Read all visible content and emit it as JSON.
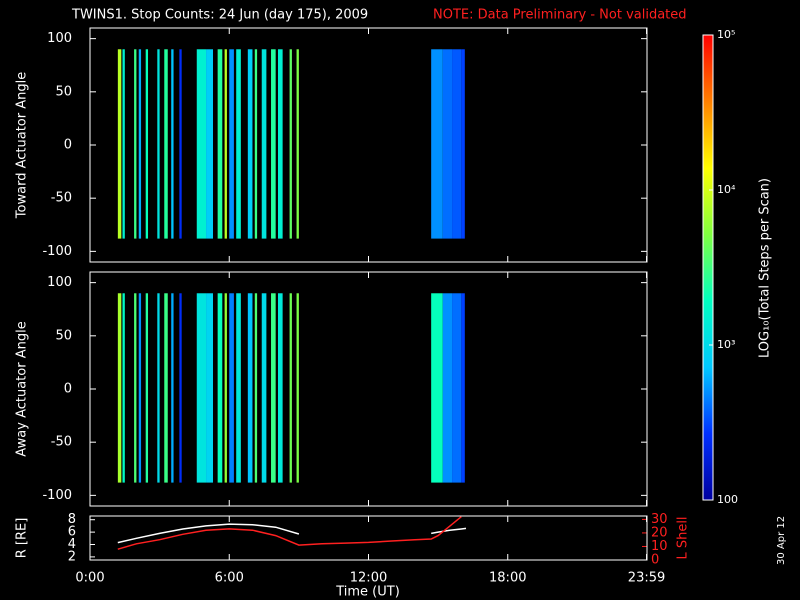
{
  "title": "TWINS1. Stop Counts: 24 Jun (day 175), 2009",
  "note": "NOTE: Data Preliminary - Not validated",
  "x_label": "Time (UT)",
  "date_stamp": "30 Apr 12",
  "time_axis": {
    "xlim": [
      0,
      24
    ],
    "xticks": [
      {
        "value": 0,
        "label": "0:00"
      },
      {
        "value": 6,
        "label": "6:00"
      },
      {
        "value": 12,
        "label": "12:00"
      },
      {
        "value": 18,
        "label": "18:00"
      },
      {
        "value": 23.98,
        "label": "23:59"
      }
    ]
  },
  "colorbar": {
    "label": "LOG₁₀(Total Steps per Scan)",
    "scale": "log",
    "lim": [
      100,
      100000
    ],
    "ticks": [
      100,
      {
        "value": 1000,
        "label": "10³"
      },
      {
        "value": 10000,
        "label": "10⁴"
      },
      {
        "value": 100000,
        "label": "10⁵"
      }
    ],
    "colors": [
      "#0000a0",
      "#0030ff",
      "#00c8ff",
      "#00ffc0",
      "#80ff40",
      "#ffff00",
      "#ff8000",
      "#ff0000"
    ]
  },
  "chart_data": [
    {
      "type": "heatmap",
      "y_label": "Toward Actuator Angle",
      "ylim": [
        -110,
        110
      ],
      "yticks": [
        -100,
        -50,
        0,
        50,
        100
      ],
      "angle_range": [
        -88,
        90
      ],
      "x_start": [
        1.2,
        1.4,
        1.9,
        2.1,
        2.4,
        2.9,
        3.2,
        3.5,
        3.85,
        4.6,
        5.0,
        5.5,
        5.8,
        6.0,
        6.3,
        6.8,
        7.1,
        7.4,
        7.8,
        8.1,
        8.6,
        8.9,
        14.7,
        15.2,
        15.6,
        16.0
      ],
      "x_end": [
        1.35,
        1.5,
        2.0,
        2.2,
        2.5,
        3.0,
        3.35,
        3.6,
        3.95,
        5.0,
        5.3,
        5.7,
        5.9,
        6.2,
        6.5,
        7.0,
        7.2,
        7.6,
        8.0,
        8.3,
        8.7,
        9.0,
        15.2,
        15.6,
        16.0,
        16.15
      ],
      "values": [
        8000,
        1500,
        3000,
        600,
        2000,
        1200,
        2500,
        700,
        250,
        1500,
        800,
        2500,
        8000,
        500,
        1500,
        800,
        3000,
        1200,
        2500,
        1500,
        4000,
        5000,
        500,
        400,
        350,
        300
      ]
    },
    {
      "type": "heatmap",
      "y_label": "Away Actuator Angle",
      "ylim": [
        -110,
        110
      ],
      "yticks": [
        -100,
        -50,
        0,
        50,
        100
      ],
      "angle_range": [
        -88,
        90
      ],
      "x_start": [
        1.2,
        1.4,
        1.9,
        2.1,
        2.4,
        2.9,
        3.2,
        3.5,
        3.85,
        4.6,
        5.0,
        5.5,
        5.8,
        6.0,
        6.3,
        6.8,
        7.1,
        7.4,
        7.8,
        8.1,
        8.6,
        8.9,
        14.7,
        15.2,
        15.6,
        16.0
      ],
      "x_end": [
        1.35,
        1.5,
        2.0,
        2.2,
        2.5,
        3.0,
        3.35,
        3.6,
        3.95,
        5.0,
        5.3,
        5.7,
        5.9,
        6.2,
        6.5,
        7.0,
        7.2,
        7.6,
        8.0,
        8.3,
        8.7,
        9.0,
        15.2,
        15.6,
        16.0,
        16.15
      ],
      "values": [
        7000,
        1800,
        3500,
        500,
        2500,
        1000,
        3000,
        600,
        250,
        1200,
        900,
        2000,
        6000,
        450,
        1300,
        700,
        3500,
        1000,
        3000,
        1300,
        4500,
        5000,
        2000,
        500,
        400,
        300
      ]
    },
    {
      "type": "line",
      "ylim": [
        1.5,
        8.6
      ],
      "yticks": [
        2,
        4,
        6,
        8
      ],
      "y2lim": [
        0,
        32.5
      ],
      "y2ticks": [
        0,
        10,
        20,
        30
      ],
      "x": [
        1.2,
        2,
        3,
        4,
        5,
        6,
        7,
        8,
        9,
        10,
        11,
        12,
        13,
        14,
        14.7,
        15,
        15.5,
        16,
        16.2
      ],
      "series": [
        {
          "name": "R [RE]",
          "color": "#ffffff",
          "values": [
            4.3,
            5.0,
            5.8,
            6.5,
            7.0,
            7.3,
            7.2,
            6.8,
            5.7,
            null,
            null,
            null,
            null,
            null,
            5.8,
            6.0,
            6.3,
            6.5,
            6.6
          ]
        },
        {
          "name": "L Shell",
          "color": "#ff2020",
          "axis": "y2",
          "values": [
            8,
            12,
            15,
            19,
            22,
            23,
            22,
            18,
            11,
            12,
            12.5,
            13,
            14,
            15,
            15.5,
            18,
            25,
            32,
            null
          ]
        }
      ]
    }
  ]
}
